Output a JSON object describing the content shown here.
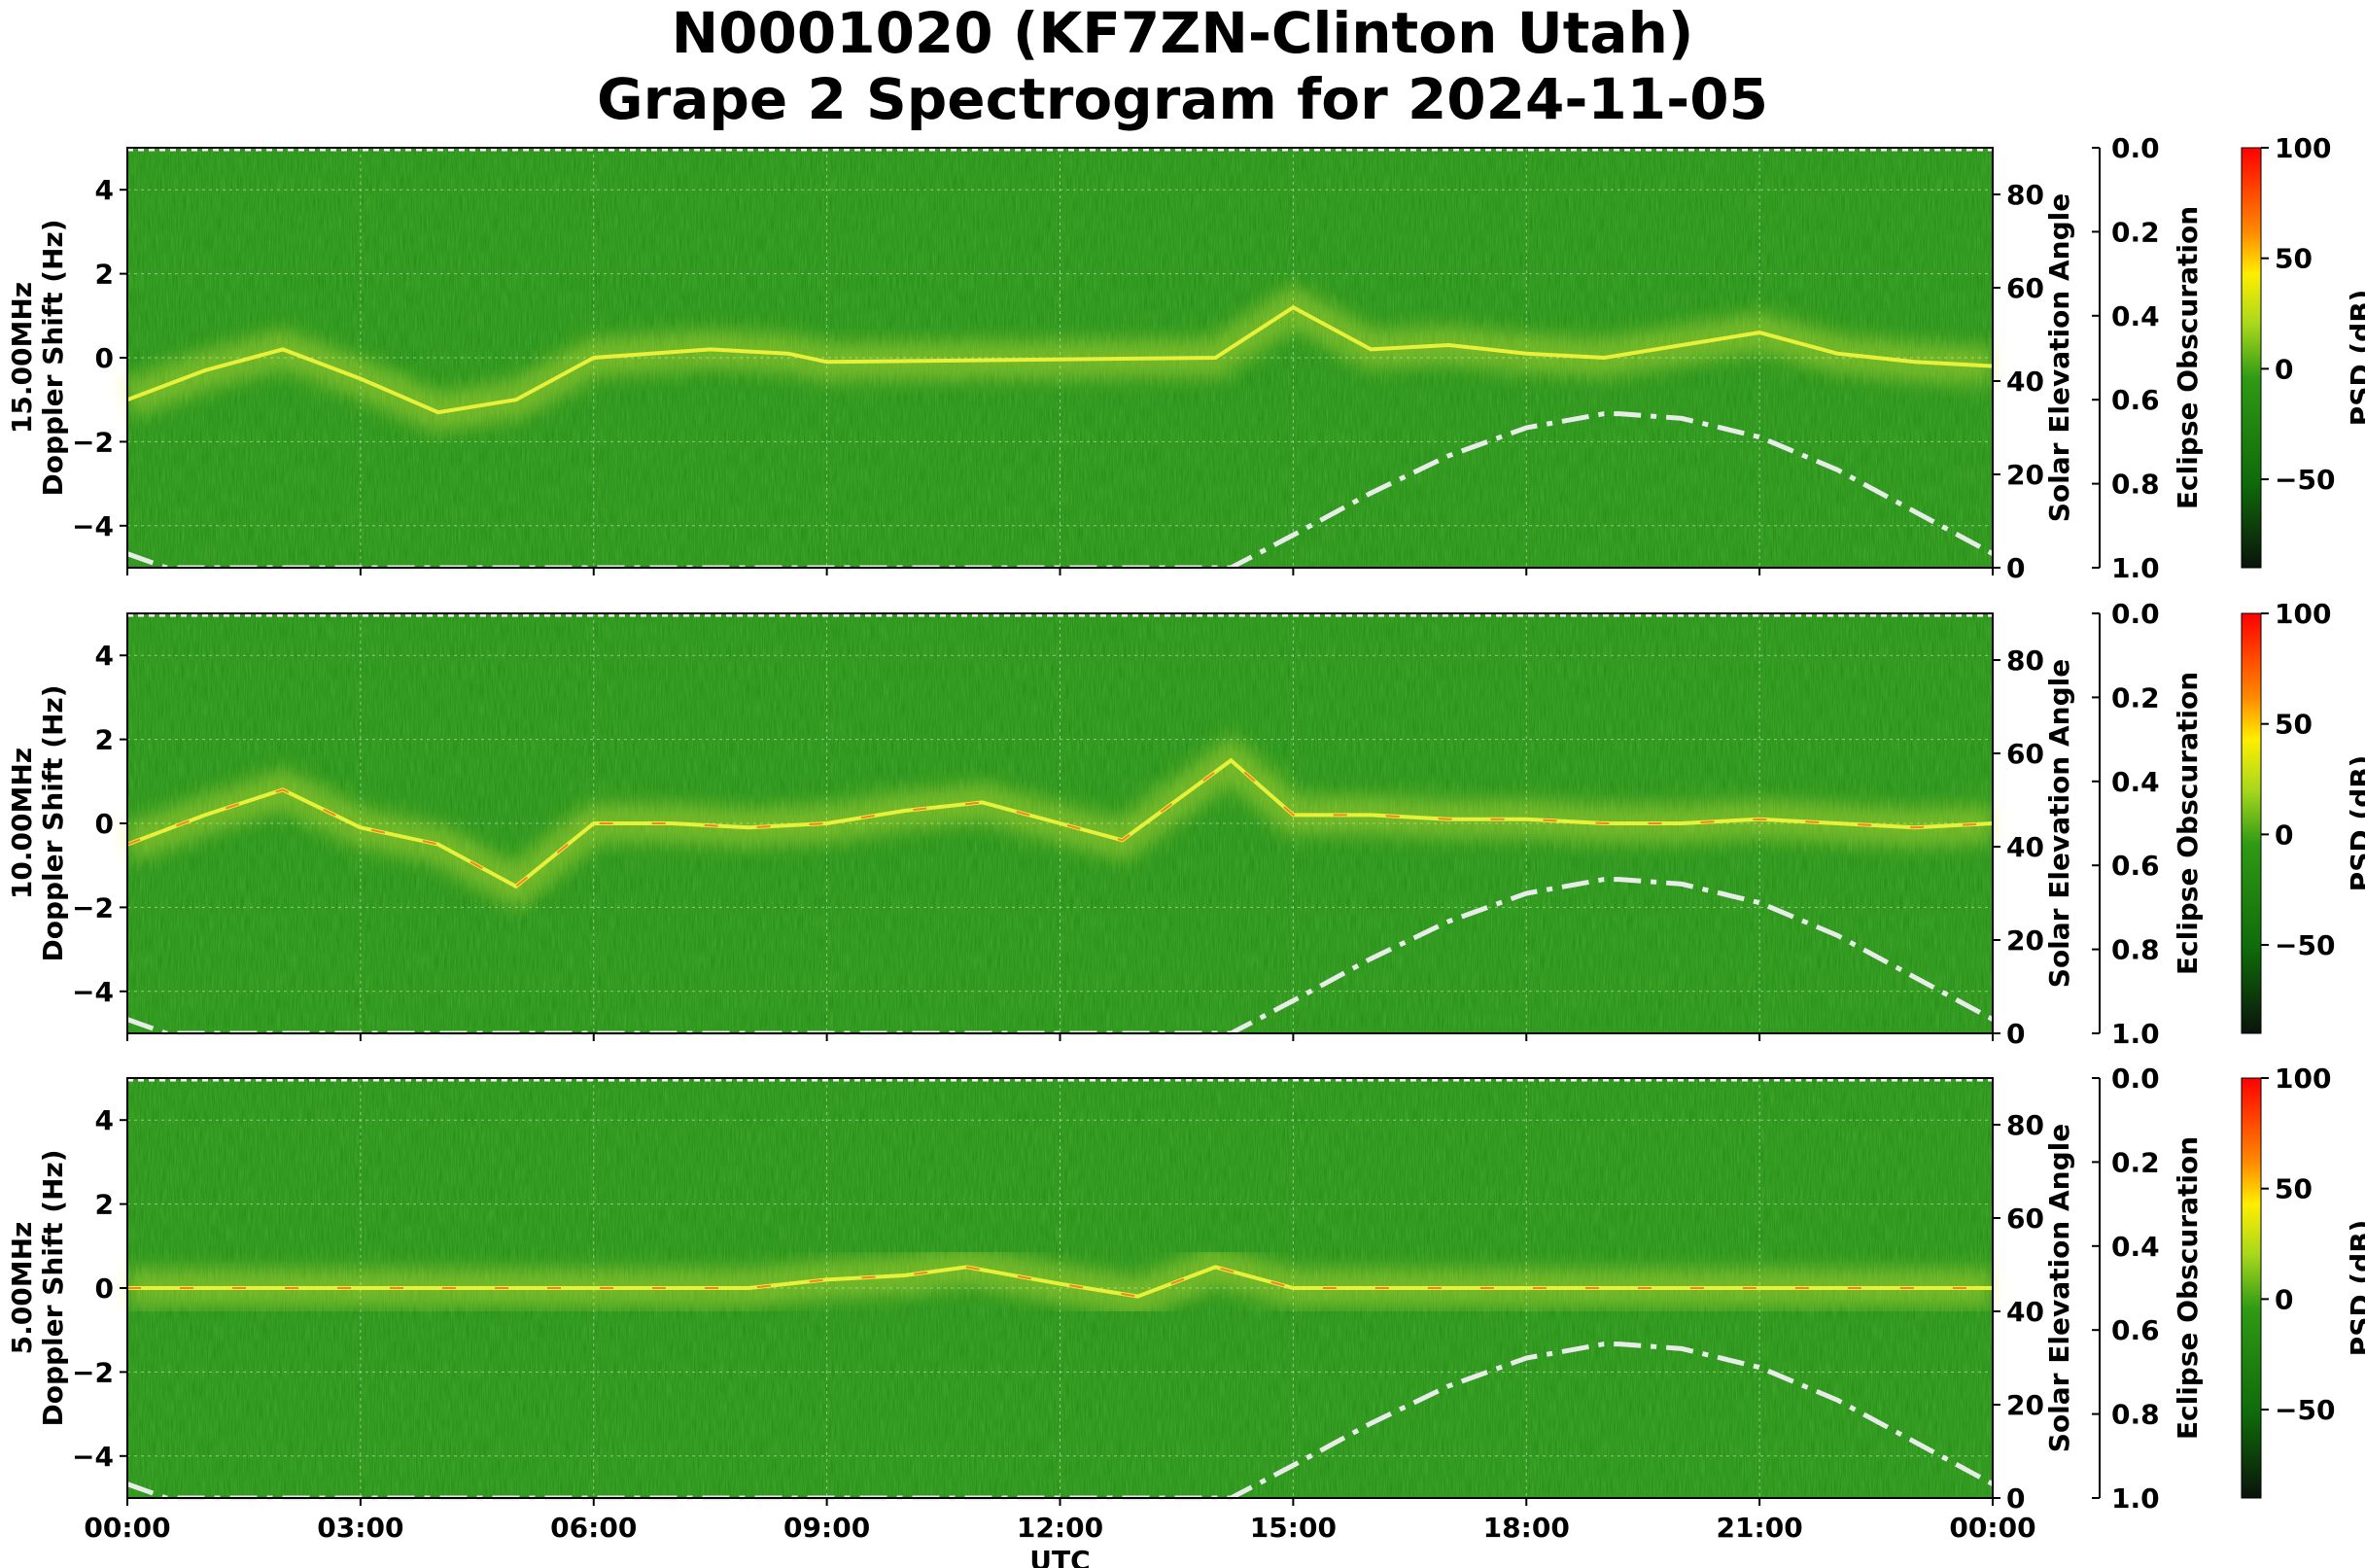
{
  "figure": {
    "title_line1": "N0001020 (KF7ZN-Clinton Utah)",
    "title_line2": "Grape 2 Spectrogram for 2024-11-05",
    "xlabel": "UTC",
    "x_tick_labels": [
      "00:00",
      "03:00",
      "06:00",
      "09:00",
      "12:00",
      "15:00",
      "18:00",
      "21:00",
      "00:00"
    ],
    "doppler_tick_labels": [
      "4",
      "2",
      "0",
      "−2",
      "−4"
    ],
    "elevation_label": "Solar Elevation Angle",
    "elevation_tick_labels": [
      "80",
      "60",
      "40",
      "20",
      "0"
    ],
    "eclipse_label": "Eclipse Obscuration",
    "eclipse_tick_labels": [
      "0.0",
      "0.2",
      "0.4",
      "0.6",
      "0.8",
      "1.0"
    ],
    "colorbar_label": "PSD (dB)",
    "colorbar_tick_labels": [
      "100",
      "50",
      "0",
      "−50"
    ],
    "colors": {
      "bg_green": "#1f8a14",
      "ridge": "#e8f03a",
      "hot": "#ff3b12",
      "elevation_curve": "#e8ece8"
    }
  },
  "chart_data": [
    {
      "type": "heatmap",
      "frequency_label": "15.00MHz",
      "ylabel": "Doppler Shift (Hz)",
      "x_range_utc_hours": [
        0,
        24
      ],
      "ylim": [
        -5,
        5
      ],
      "colorbar_range_db": [
        -90,
        100
      ],
      "doppler_trace": {
        "x": [
          0,
          1,
          2,
          3,
          4,
          5,
          6,
          7.5,
          8.5,
          9,
          14,
          15,
          16,
          17,
          18,
          19,
          20,
          21,
          22,
          23,
          24
        ],
        "y": [
          -1.0,
          -0.3,
          0.2,
          -0.5,
          -1.3,
          -1.0,
          0.0,
          0.2,
          0.1,
          -0.1,
          0.0,
          1.2,
          0.2,
          0.3,
          0.1,
          0.0,
          0.3,
          0.6,
          0.1,
          -0.1,
          -0.2
        ]
      },
      "solar_elevation": {
        "x": [
          0,
          0.5,
          14.2,
          15,
          16,
          17,
          18,
          19,
          19.2,
          20,
          21,
          22,
          23,
          24
        ],
        "y": [
          3,
          0,
          0,
          7,
          16,
          24,
          30,
          33,
          33,
          32,
          28,
          21,
          12,
          3
        ]
      }
    },
    {
      "type": "heatmap",
      "frequency_label": "10.00MHz",
      "ylabel": "Doppler Shift (Hz)",
      "x_range_utc_hours": [
        0,
        24
      ],
      "ylim": [
        -5,
        5
      ],
      "colorbar_range_db": [
        -90,
        100
      ],
      "doppler_trace": {
        "x": [
          0,
          1,
          2,
          3,
          4,
          5,
          6,
          7,
          8,
          9,
          10,
          11,
          12,
          12.8,
          14.2,
          15,
          16,
          17,
          18,
          19,
          20,
          21,
          22,
          23,
          24
        ],
        "y": [
          -0.5,
          0.2,
          0.8,
          -0.1,
          -0.5,
          -1.5,
          0.0,
          0.0,
          -0.1,
          0.0,
          0.3,
          0.5,
          0.0,
          -0.4,
          1.5,
          0.2,
          0.2,
          0.1,
          0.1,
          0.0,
          0.0,
          0.1,
          0.0,
          -0.1,
          0.0
        ]
      },
      "solar_elevation": {
        "x": [
          0,
          0.5,
          14.2,
          15,
          16,
          17,
          18,
          19,
          19.2,
          20,
          21,
          22,
          23,
          24
        ],
        "y": [
          3,
          0,
          0,
          7,
          16,
          24,
          30,
          33,
          33,
          32,
          28,
          21,
          12,
          3
        ]
      }
    },
    {
      "type": "heatmap",
      "frequency_label": "5.00MHz",
      "ylabel": "Doppler Shift (Hz)",
      "x_range_utc_hours": [
        0,
        24
      ],
      "ylim": [
        -5,
        5
      ],
      "colorbar_range_db": [
        -90,
        100
      ],
      "doppler_trace": {
        "x": [
          0,
          2,
          4,
          6,
          8,
          9,
          10,
          10.8,
          12,
          13,
          14,
          15,
          16,
          18,
          20,
          22,
          24
        ],
        "y": [
          0.0,
          0.0,
          0.0,
          0.0,
          0.0,
          0.2,
          0.3,
          0.5,
          0.1,
          -0.2,
          0.5,
          0.0,
          0.0,
          0.0,
          0.0,
          0.0,
          0.0
        ]
      },
      "solar_elevation": {
        "x": [
          0,
          0.5,
          14.2,
          15,
          16,
          17,
          18,
          19,
          19.2,
          20,
          21,
          22,
          23,
          24
        ],
        "y": [
          3,
          0,
          0,
          7,
          16,
          24,
          30,
          33,
          33,
          32,
          28,
          21,
          12,
          3
        ]
      }
    }
  ]
}
